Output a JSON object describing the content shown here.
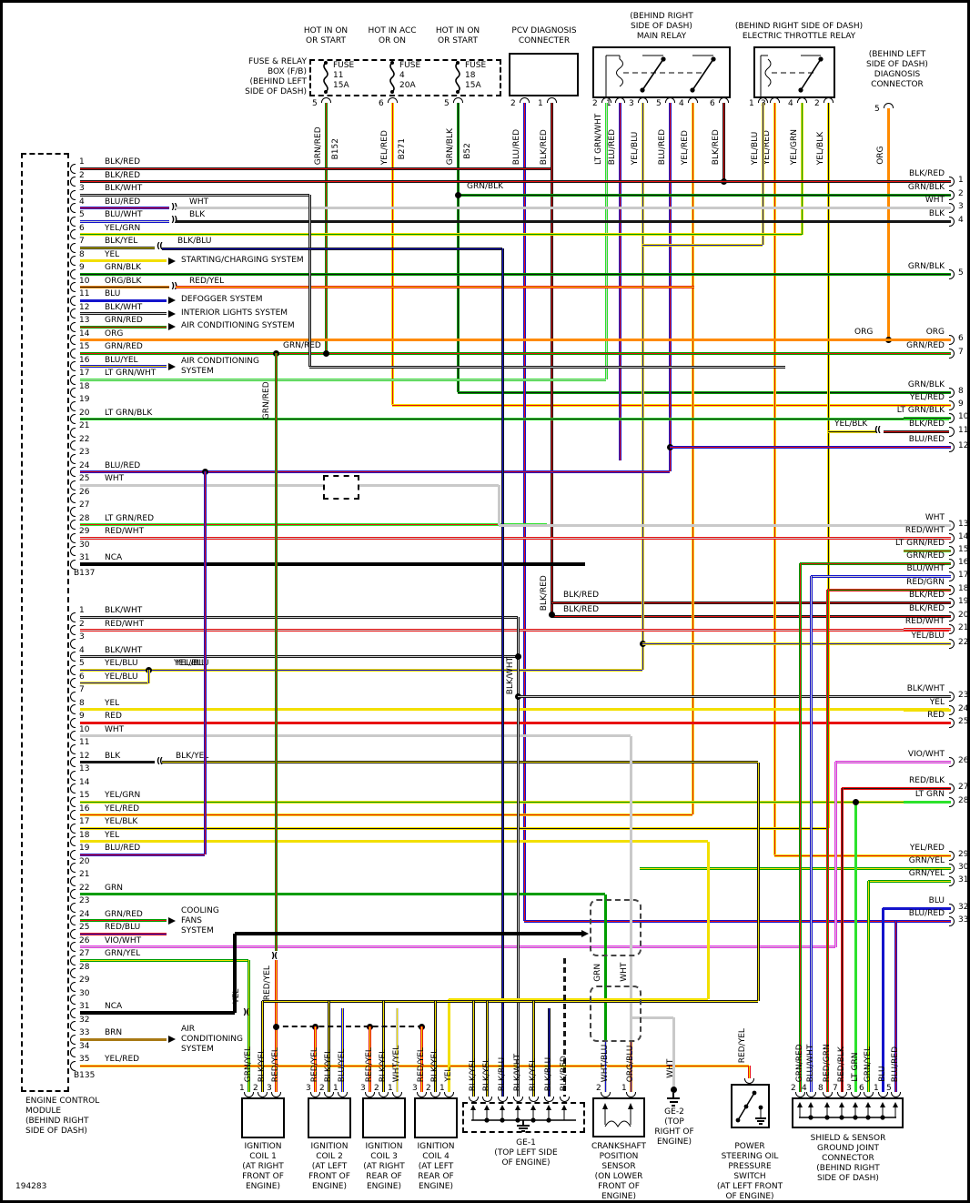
{
  "title_id": "194283",
  "colors": {
    "BLK": "#161616",
    "WHT": "#c9c9c9",
    "RED": "#e81111",
    "BLU": "#1414cc",
    "GRN": "#009c00",
    "LT GRN": "#2ce22c",
    "YEL": "#f2df00",
    "ORG": "#ff8a00",
    "BRN": "#a87914",
    "VIO": "#e832e8",
    "NCA": "#000000"
  },
  "ecm": {
    "label_lines": [
      "ENGINE CONTROL",
      "MODULE",
      "(BEHIND RIGHT",
      "SIDE OF DASH)"
    ],
    "connector_a": {
      "name": "B137",
      "pins": [
        {
          "n": "1",
          "label": "BLK/RED"
        },
        {
          "n": "2",
          "label": "BLK/RED"
        },
        {
          "n": "3",
          "label": "BLK/WHT"
        },
        {
          "n": "4",
          "label": "BLU/RED",
          "tag": "WHT"
        },
        {
          "n": "5",
          "label": "BLU/WHT",
          "tag": "BLK"
        },
        {
          "n": "6",
          "label": "YEL/GRN"
        },
        {
          "n": "7",
          "label": "BLK/YEL",
          "tag": "BLK/BLU"
        },
        {
          "n": "8",
          "label": "YEL",
          "sys": [
            "STARTING/CHARGING SYSTEM"
          ]
        },
        {
          "n": "9",
          "label": "GRN/BLK"
        },
        {
          "n": "10",
          "label": "ORG/BLK",
          "tag": "RED/YEL"
        },
        {
          "n": "11",
          "label": "BLU",
          "sys": [
            "DEFOGGER SYSTEM"
          ]
        },
        {
          "n": "12",
          "label": "BLK/WHT",
          "sys": [
            "INTERIOR LIGHTS SYSTEM"
          ]
        },
        {
          "n": "13",
          "label": "GRN/RED",
          "sys": [
            "AIR CONDITIONING SYSTEM"
          ]
        },
        {
          "n": "14",
          "label": "ORG"
        },
        {
          "n": "15",
          "label": "GRN/RED"
        },
        {
          "n": "16",
          "label": "BLU/YEL",
          "sys": [
            "AIR CONDITIONING",
            "SYSTEM"
          ]
        },
        {
          "n": "17",
          "label": "LT GRN/WHT"
        },
        {
          "n": "18"
        },
        {
          "n": "19"
        },
        {
          "n": "20",
          "label": "LT GRN/BLK"
        },
        {
          "n": "21"
        },
        {
          "n": "22"
        },
        {
          "n": "23"
        },
        {
          "n": "24",
          "label": "BLU/RED"
        },
        {
          "n": "25",
          "label": "WHT"
        },
        {
          "n": "26"
        },
        {
          "n": "27"
        },
        {
          "n": "28",
          "label": "LT GRN/RED"
        },
        {
          "n": "29",
          "label": "RED/WHT"
        },
        {
          "n": "30"
        },
        {
          "n": "31",
          "label": "NCA"
        }
      ]
    },
    "connector_b": {
      "name": "B135",
      "pins": [
        {
          "n": "1",
          "label": "BLK/WHT"
        },
        {
          "n": "2",
          "label": "RED/WHT"
        },
        {
          "n": "3"
        },
        {
          "n": "4",
          "label": "BLK/WHT"
        },
        {
          "n": "5",
          "label": "YEL/BLU",
          "tag": "YEL/BLU"
        },
        {
          "n": "6",
          "label": "YEL/BLU"
        },
        {
          "n": "7"
        },
        {
          "n": "8",
          "label": "YEL"
        },
        {
          "n": "9",
          "label": "RED"
        },
        {
          "n": "10",
          "label": "WHT"
        },
        {
          "n": "11"
        },
        {
          "n": "12",
          "label": "BLK",
          "tag": "BLK/YEL"
        },
        {
          "n": "13"
        },
        {
          "n": "14"
        },
        {
          "n": "15",
          "label": "YEL/GRN"
        },
        {
          "n": "16",
          "label": "YEL/RED"
        },
        {
          "n": "17",
          "label": "YEL/BLK"
        },
        {
          "n": "18",
          "label": "YEL"
        },
        {
          "n": "19",
          "label": "BLU/RED"
        },
        {
          "n": "20"
        },
        {
          "n": "21"
        },
        {
          "n": "22",
          "label": "GRN"
        },
        {
          "n": "23"
        },
        {
          "n": "24",
          "label": "GRN/RED",
          "sys": [
            "COOLING",
            "FANS",
            "SYSTEM"
          ]
        },
        {
          "n": "25",
          "label": "RED/BLU"
        },
        {
          "n": "26",
          "label": "VIO/WHT"
        },
        {
          "n": "27",
          "label": "GRN/YEL"
        },
        {
          "n": "28"
        },
        {
          "n": "29"
        },
        {
          "n": "30"
        },
        {
          "n": "31",
          "label": "NCA"
        },
        {
          "n": "32"
        },
        {
          "n": "33",
          "label": "BRN",
          "sys": [
            "AIR",
            "CONDITIONING",
            "SYSTEM"
          ]
        },
        {
          "n": "34"
        },
        {
          "n": "35",
          "label": "YEL/RED"
        }
      ]
    }
  },
  "fuse_box": {
    "label_lines": [
      "FUSE & RELAY",
      "BOX (F/B)",
      "(BEHIND LEFT",
      "SIDE OF DASH)"
    ],
    "fuses": [
      {
        "header": [
          "HOT IN ON",
          "OR START"
        ],
        "name": "FUSE",
        "num": "11",
        "amps": "15A",
        "pin": "5",
        "wire": "GRN/RED",
        "connector": "B152"
      },
      {
        "header": [
          "HOT IN ACC",
          "OR ON"
        ],
        "name": "FUSE",
        "num": "4",
        "amps": "20A",
        "pin": "6",
        "wire": "YEL/RED",
        "connector": "B271"
      },
      {
        "header": [
          "HOT IN ON",
          "OR START"
        ],
        "name": "FUSE",
        "num": "18",
        "amps": "15A",
        "pin": "5",
        "wire": "GRN/BLK",
        "connector": "B52"
      }
    ]
  },
  "pcv": {
    "title_lines": [
      "PCV DIAGNOSIS",
      "CONNECTER"
    ],
    "pins": [
      {
        "n": "2",
        "wire": "BLU/RED"
      },
      {
        "n": "1",
        "wire": "BLK/RED"
      }
    ]
  },
  "main_relay": {
    "title_lines": [
      "(BEHIND RIGHT",
      "SIDE OF DASH)",
      "MAIN RELAY"
    ],
    "pins": [
      {
        "n": "2",
        "wire": "LT GRN/WHT"
      },
      {
        "n": "1",
        "wire": "BLU/RED"
      },
      {
        "n": "3",
        "wire": "YEL/BLU"
      },
      {
        "n": "5",
        "wire": "BLU/RED"
      },
      {
        "n": "4",
        "wire": "YEL/RED"
      },
      {
        "n": "6",
        "wire": "BLK/RED"
      }
    ]
  },
  "throttle_relay": {
    "title_lines": [
      "(BEHIND RIGHT SIDE OF DASH)",
      "ELECTRIC THROTTLE RELAY"
    ],
    "pins": [
      {
        "n": "1",
        "wire": "YEL/BLU"
      },
      {
        "n": "3",
        "wire": "YEL/RED"
      },
      {
        "n": "4",
        "wire": "YEL/GRN"
      },
      {
        "n": "2",
        "wire": "YEL/BLK"
      }
    ]
  },
  "diag_connector": {
    "title_lines": [
      "(BEHIND LEFT",
      "SIDE OF DASH)",
      "DIAGNOSIS",
      "CONNECTOR"
    ],
    "pins": [
      {
        "n": "5",
        "wire": "ORG"
      }
    ]
  },
  "right_pins": [
    {
      "n": "1",
      "label": "BLK/RED"
    },
    {
      "n": "2",
      "label": "GRN/BLK"
    },
    {
      "n": "3",
      "label": "WHT"
    },
    {
      "n": "4",
      "label": "BLK"
    },
    {
      "n": "5",
      "label": "GRN/BLK"
    },
    {
      "n": "6",
      "label": "ORG",
      "pre": "ORG"
    },
    {
      "n": "7",
      "label": "GRN/RED"
    },
    {
      "n": "8",
      "label": "GRN/BLK"
    },
    {
      "n": "9",
      "label": "YEL/RED"
    },
    {
      "n": "10",
      "label": "LT GRN/BLK"
    },
    {
      "n": "11",
      "label": "BLK/RED",
      "pre": "YEL/BLK"
    },
    {
      "n": "12",
      "label": "BLU/RED"
    },
    {
      "n": "13",
      "label": "WHT"
    },
    {
      "n": "14",
      "label": "RED/WHT"
    },
    {
      "n": "15",
      "label": "LT GRN/RED"
    },
    {
      "n": "16",
      "label": "GRN/RED"
    },
    {
      "n": "17",
      "label": "BLU/WHT"
    },
    {
      "n": "18",
      "label": "RED/GRN"
    },
    {
      "n": "19",
      "label": "BLK/RED"
    },
    {
      "n": "20",
      "label": "BLK/RED"
    },
    {
      "n": "21",
      "label": "RED/WHT"
    },
    {
      "n": "22",
      "label": "YEL/BLU"
    },
    {
      "n": "23",
      "label": "BLK/WHT"
    },
    {
      "n": "24",
      "label": "YEL"
    },
    {
      "n": "25",
      "label": "RED"
    },
    {
      "n": "26",
      "label": "VIO/WHT"
    },
    {
      "n": "27",
      "label": "RED/BLK"
    },
    {
      "n": "28",
      "label": "LT GRN"
    },
    {
      "n": "29",
      "label": "YEL/RED"
    },
    {
      "n": "30",
      "label": "GRN/YEL"
    },
    {
      "n": "31",
      "label": "GRN/YEL"
    },
    {
      "n": "32",
      "label": "BLU"
    },
    {
      "n": "33",
      "label": "BLU/RED"
    }
  ],
  "mid_labels": {
    "grn_blk": "GRN/BLK",
    "grn_red": "GRN/RED",
    "blk_red_a": "BLK/RED",
    "blk_red_b": "BLK/RED",
    "grn_red_vert": "GRN/RED",
    "blk_red_vert": "BLK/RED",
    "blk_wht_vert": "BLK/WHT",
    "yel_vert": "YEL",
    "red_yel_vert": "RED/YEL",
    "red_yel_psp": "RED/YEL",
    "grn_vert": "GRN",
    "wht_vert": "WHT"
  },
  "coils": [
    {
      "title_lines": [
        "IGNITION",
        "COIL 1",
        "(AT RIGHT",
        "FRONT OF",
        "ENGINE)"
      ],
      "pins": [
        {
          "n": "1",
          "wire": "GRN/YEL"
        },
        {
          "n": "2",
          "wire": "BLK/YEL"
        },
        {
          "n": "3",
          "wire": "RED/YEL"
        }
      ]
    },
    {
      "title_lines": [
        "IGNITION",
        "COIL 2",
        "(AT LEFT",
        "FRONT OF",
        "ENGINE)"
      ],
      "pins": [
        {
          "n": "3",
          "wire": "RED/YEL"
        },
        {
          "n": "2",
          "wire": "BLK/YEL"
        },
        {
          "n": "1",
          "wire": "BLU/YEL"
        }
      ]
    },
    {
      "title_lines": [
        "IGNITION",
        "COIL 3",
        "(AT RIGHT",
        "REAR OF",
        "ENGINE)"
      ],
      "pins": [
        {
          "n": "3",
          "wire": "RED/YEL"
        },
        {
          "n": "2",
          "wire": "BLK/YEL"
        },
        {
          "n": "1",
          "wire": "WHT/YEL"
        }
      ]
    },
    {
      "title_lines": [
        "IGNITION",
        "COIL 4",
        "(AT LEFT",
        "REAR OF",
        "ENGINE)"
      ],
      "pins": [
        {
          "n": "3",
          "wire": "RED/YEL"
        },
        {
          "n": "2",
          "wire": "BLK/YEL"
        },
        {
          "n": "1",
          "wire": "YEL"
        }
      ]
    }
  ],
  "ge1": {
    "label_lines": [
      "GE-1",
      "(TOP LEFT SIDE",
      "OF ENGINE)"
    ],
    "wires": [
      "BLK/YEL",
      "BLK/YEL",
      "BLK/BLU",
      "BLK/WHT",
      "BLK/YEL",
      "BLK/BLU",
      "BLK/RED"
    ]
  },
  "crank": {
    "label_lines": [
      "CRANKSHAFT",
      "POSITION",
      "SENSOR",
      "(ON LOWER",
      "FRONT OF",
      "ENGINE)"
    ],
    "pins": [
      {
        "n": "2",
        "wire": "WHT/BLU"
      },
      {
        "n": "1",
        "wire": "ORG/BLU"
      }
    ],
    "shield_labels": [
      "GRN",
      "WHT"
    ]
  },
  "ge2": {
    "label_lines": [
      "GE-2",
      "(TOP",
      "RIGHT OF",
      "ENGINE)"
    ],
    "wire": "WHT"
  },
  "psp": {
    "label_lines": [
      "POWER",
      "STEERING OIL",
      "PRESSURE",
      "SWITCH",
      "(AT LEFT FRONT",
      "OF ENGINE)"
    ],
    "wire": "RED/YEL"
  },
  "sgj": {
    "label_lines": [
      "SHIELD & SENSOR",
      "GROUND JOINT",
      "CONNECTOR",
      "(BEHIND RIGHT",
      "SIDE OF DASH)"
    ],
    "pins": [
      {
        "n": "2",
        "wire": "GRN/RED"
      },
      {
        "n": "4",
        "wire": "BLU/WHT"
      },
      {
        "n": "8",
        "wire": "RED/GRN"
      },
      {
        "n": "7",
        "wire": "RED/BLK"
      },
      {
        "n": "3",
        "wire": "LT GRN"
      },
      {
        "n": "6",
        "wire": "GRN/YEL"
      },
      {
        "n": "1",
        "wire": "BLU"
      },
      {
        "n": "5",
        "wire": "BLU/RED"
      }
    ]
  }
}
